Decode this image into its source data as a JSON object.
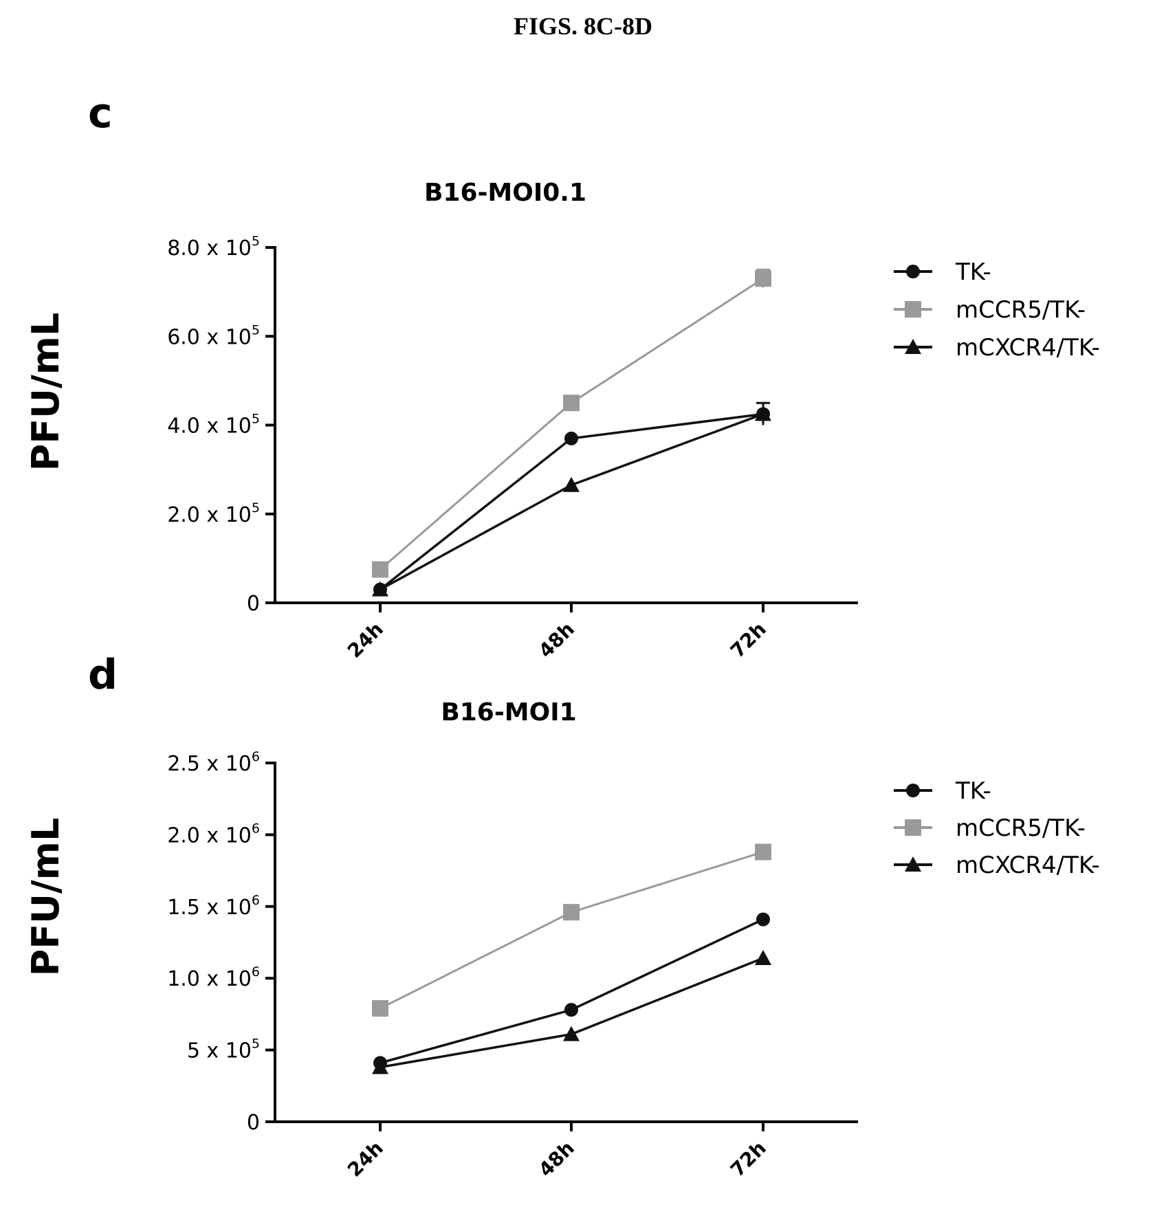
{
  "figure_title": "FIGS. 8C-8D",
  "colors": {
    "TK-": "#111111",
    "mCCR5/TK-": "#9a9a9a",
    "mCXCR4/TK-": "#111111"
  },
  "chart_data": [
    {
      "panel": "c",
      "type": "line",
      "title": "B16-MOI0.1",
      "ylabel": "PFU/mL",
      "xlabel": "",
      "categories": [
        "24h",
        "48h",
        "72h"
      ],
      "ylim": [
        0,
        800000
      ],
      "yticks": [
        {
          "value": 0,
          "mant": "0",
          "exp": ""
        },
        {
          "value": 200000,
          "mant": "2.0 x 10",
          "exp": "5"
        },
        {
          "value": 400000,
          "mant": "4.0 x 10",
          "exp": "5"
        },
        {
          "value": 600000,
          "mant": "6.0 x 10",
          "exp": "5"
        },
        {
          "value": 800000,
          "mant": "8.0 x 10",
          "exp": "5"
        }
      ],
      "legend_position": "right",
      "grid": false,
      "series": [
        {
          "name": "TK-",
          "marker": "circle",
          "values": [
            30000,
            370000,
            425000
          ],
          "errors": [
            0,
            0,
            0
          ]
        },
        {
          "name": "mCCR5/TK-",
          "marker": "square",
          "values": [
            75000,
            450000,
            730000
          ],
          "errors": [
            0,
            0,
            20000
          ]
        },
        {
          "name": "mCXCR4/TK-",
          "marker": "triangle",
          "values": [
            30000,
            265000,
            425000
          ],
          "errors": [
            0,
            0,
            25000
          ]
        }
      ]
    },
    {
      "panel": "d",
      "type": "line",
      "title": "B16-MOI1",
      "ylabel": "PFU/mL",
      "xlabel": "",
      "categories": [
        "24h",
        "48h",
        "72h"
      ],
      "ylim": [
        0,
        2500000
      ],
      "yticks": [
        {
          "value": 0,
          "mant": "0",
          "exp": ""
        },
        {
          "value": 500000,
          "mant": "5 x 10",
          "exp": "5"
        },
        {
          "value": 1000000,
          "mant": "1.0 x 10",
          "exp": "6"
        },
        {
          "value": 1500000,
          "mant": "1.5 x 10",
          "exp": "6"
        },
        {
          "value": 2000000,
          "mant": "2.0 x 10",
          "exp": "6"
        },
        {
          "value": 2500000,
          "mant": "2.5 x 10",
          "exp": "6"
        }
      ],
      "legend_position": "right",
      "grid": false,
      "series": [
        {
          "name": "TK-",
          "marker": "circle",
          "values": [
            410000,
            780000,
            1410000
          ],
          "errors": [
            0,
            0,
            0
          ]
        },
        {
          "name": "mCCR5/TK-",
          "marker": "square",
          "values": [
            790000,
            1460000,
            1880000
          ],
          "errors": [
            0,
            0,
            0
          ]
        },
        {
          "name": "mCXCR4/TK-",
          "marker": "triangle",
          "values": [
            380000,
            610000,
            1140000
          ],
          "errors": [
            0,
            0,
            0
          ]
        }
      ]
    }
  ]
}
